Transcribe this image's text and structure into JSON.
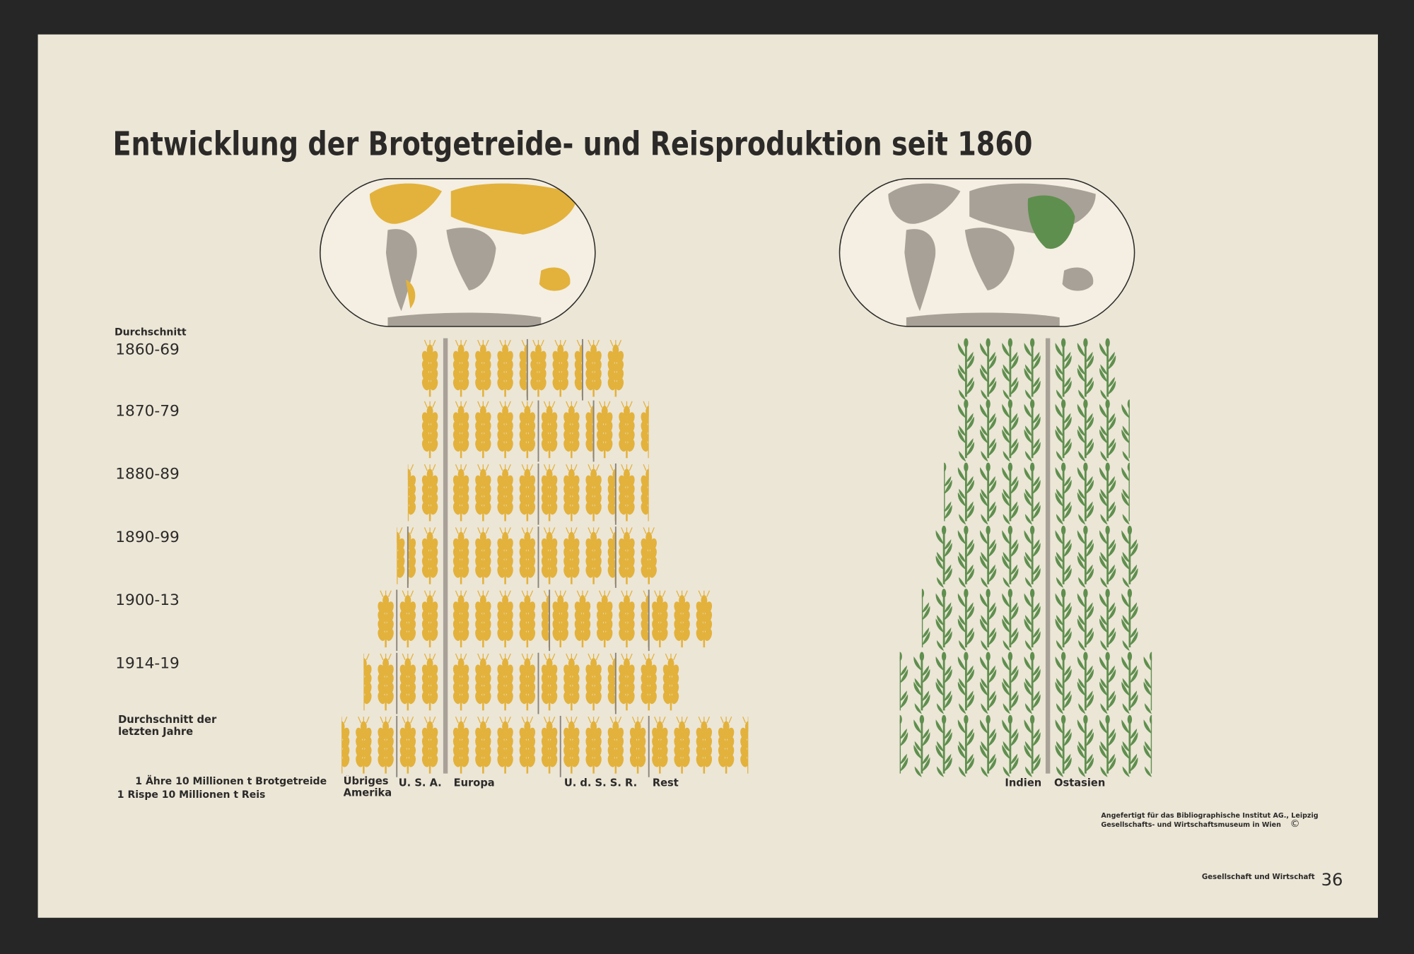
{
  "chart_data": {
    "type": "pictograph",
    "title": "Entwicklung der Brotgetreide- und Reisproduktion seit 1860",
    "category_note": "Durchschnitt",
    "categories": [
      "1860-69",
      "1870-79",
      "1880-89",
      "1890-99",
      "1900-13",
      "1914-19",
      "Durchschnitt der letzten Jahre"
    ],
    "unit_legend": [
      "1 Ähre 10 Millionen t Brotgetreide",
      "1 Rispe 10 Millionen t Reis"
    ],
    "series": [
      {
        "name": "U. S. A.",
        "icon": "wheat",
        "direction": "left",
        "color": "#e3b23c",
        "values": [
          1,
          1,
          1.5,
          1.5,
          2,
          2,
          2
        ]
      },
      {
        "name": "Übriges Amerika",
        "icon": "wheat",
        "direction": "left",
        "color": "#e3b23c",
        "values": [
          0,
          0,
          0,
          0.5,
          1,
          1.5,
          2.5
        ]
      },
      {
        "name": "Europa",
        "icon": "wheat",
        "direction": "right",
        "color": "#e3b23c",
        "values": [
          3.5,
          4,
          4,
          4,
          4.5,
          4,
          5
        ]
      },
      {
        "name": "U. d. S. S. R.",
        "icon": "wheat",
        "direction": "right",
        "color": "#e3b23c",
        "values": [
          2.5,
          2.5,
          3.5,
          3.5,
          4.5,
          3.5,
          4
        ]
      },
      {
        "name": "Rest",
        "icon": "wheat",
        "direction": "right",
        "color": "#e3b23c",
        "values": [
          2,
          2.5,
          1.5,
          2,
          3,
          3,
          4.5
        ]
      },
      {
        "name": "Indien",
        "icon": "rice",
        "direction": "left",
        "color": "#5f8f4e",
        "values": [
          4,
          4,
          4.5,
          5,
          5.5,
          6.5,
          6.5
        ]
      },
      {
        "name": "Ostasien",
        "icon": "rice",
        "direction": "right",
        "color": "#5f8f4e",
        "values": [
          3,
          3.5,
          3.5,
          4,
          4,
          4.5,
          4.5
        ]
      }
    ]
  },
  "credit": [
    "Angefertigt für das Bibliographische Institut AG., Leipzig",
    "Gesellschafts- und Wirtschaftsmuseum in Wien"
  ],
  "footer": "Gesellschaft und Wirtschaft",
  "page_number": 36
}
